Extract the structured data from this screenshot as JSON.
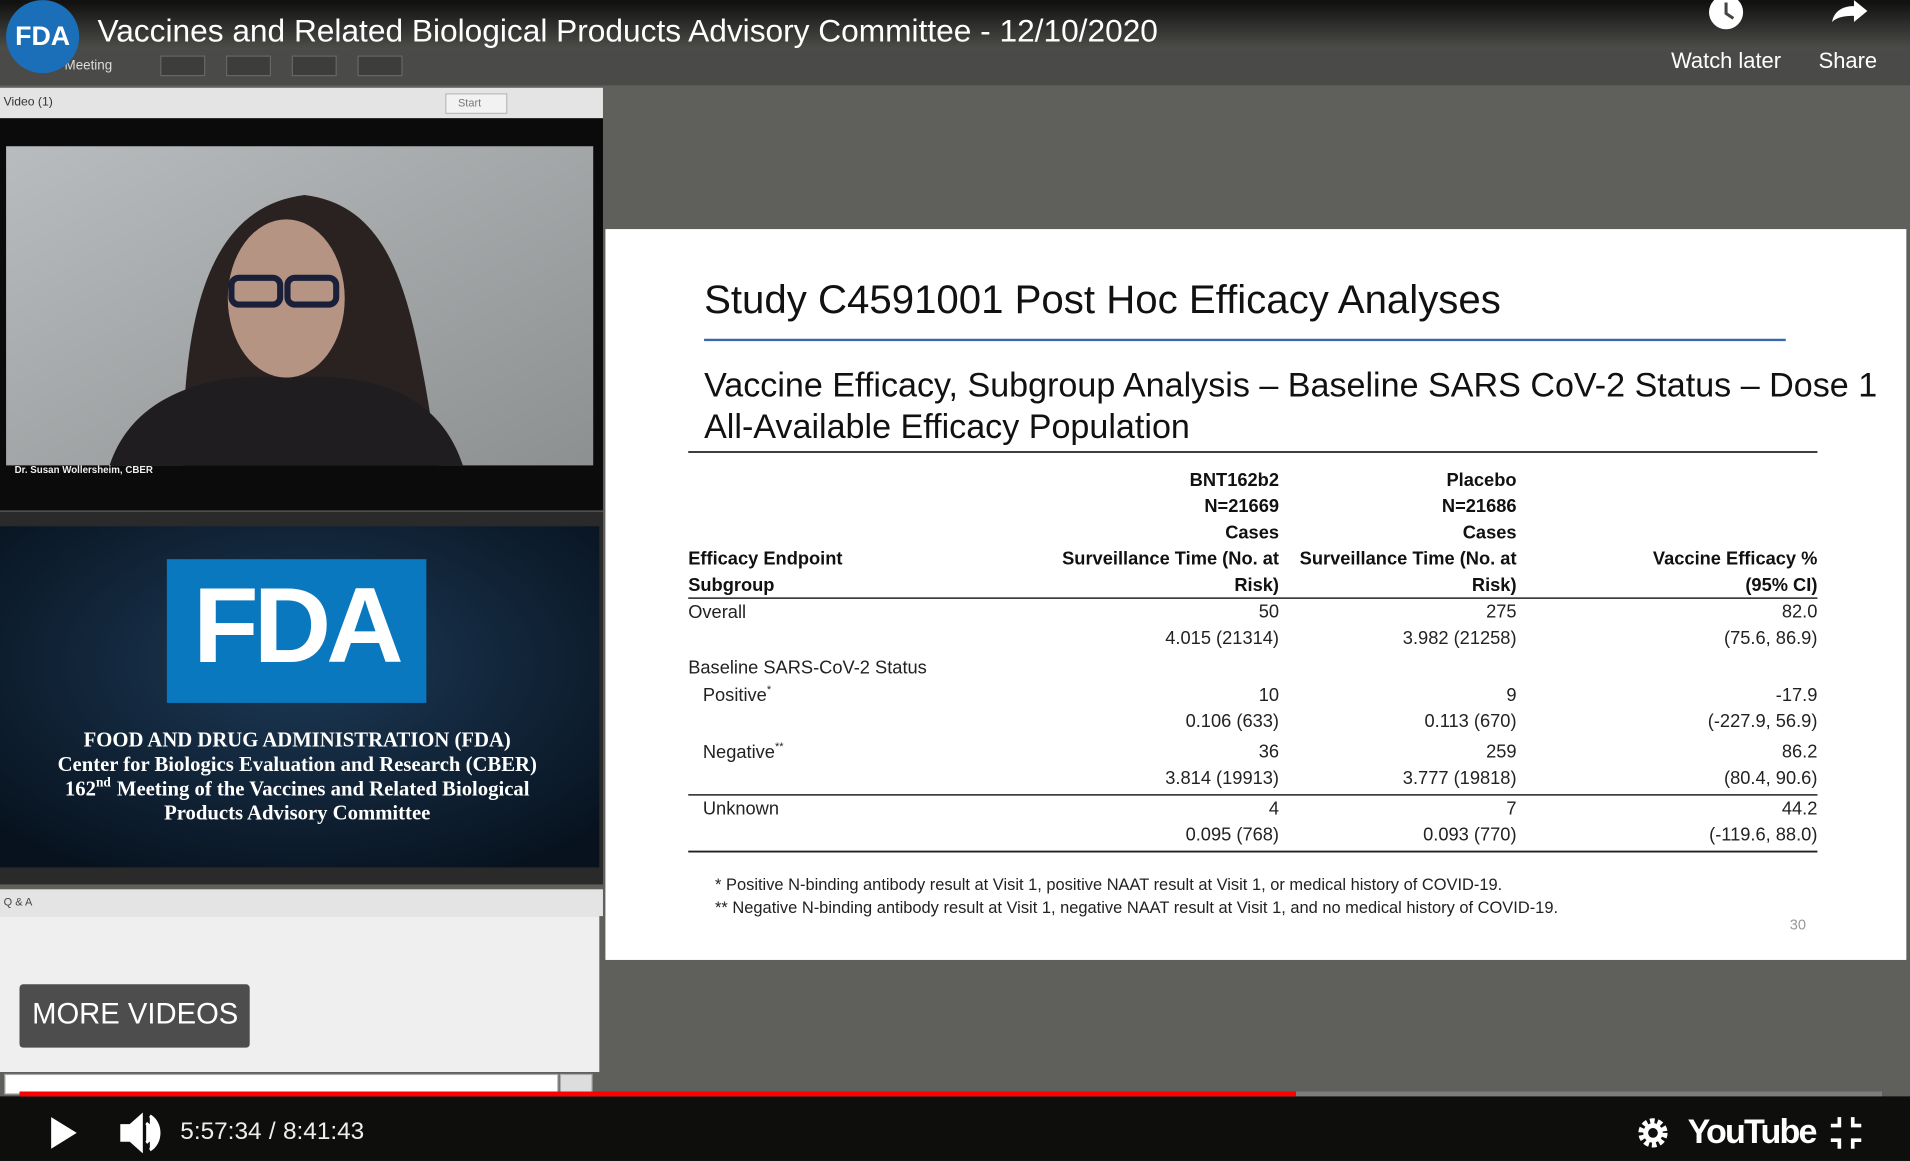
{
  "header": {
    "channel": "FDA",
    "title": "Vaccines and Related Biological Products Advisory Committee - 12/10/2020",
    "watch_later": "Watch later",
    "share": "Share"
  },
  "meeting": {
    "toolbar": "Meeting",
    "video_pod": "Video  (1)",
    "start": "Start",
    "speaker": "Dr. Susan Wollersheim, CBER",
    "logo": "FDA",
    "banner": {
      "line1": "FOOD AND DRUG ADMINISTRATION (FDA)",
      "line2": "Center for Biologics Evaluation and Research (CBER)",
      "line3": {
        "number": "162",
        "sup": "nd",
        "rest": "Meeting of the Vaccines and Related Biological"
      },
      "line4": "Products Advisory Committee"
    },
    "qa_pod": "Q & A"
  },
  "more_videos": "MORE VIDEOS",
  "slide": {
    "title": "Study C4591001 Post Hoc Efficacy Analyses",
    "subtitle_lines": [
      "Vaccine Efficacy, Subgroup Analysis – Baseline SARS CoV-2 Status – Dose 1",
      "All-Available Efficacy Population"
    ],
    "table": {
      "headers": [
        [
          "Efficacy Endpoint",
          "Subgroup"
        ],
        [
          "BNT162b2",
          "N=21669",
          "Cases",
          "Surveillance Time (No. at",
          "Risk)"
        ],
        [
          "Placebo",
          "N=21686",
          "Cases",
          "Surveillance Time (No. at",
          "Risk)"
        ],
        [
          "Vaccine Efficacy %",
          "(95% CI)"
        ]
      ],
      "rows": [
        {
          "label": "Overall",
          "bnt_cases": "50",
          "bnt_time": "4.015 (21314)",
          "pbo_cases": "275",
          "pbo_time": "3.982 (21258)",
          "ve": "82.0",
          "ci": "(75.6, 86.9)"
        }
      ],
      "group": {
        "label": "Baseline SARS-CoV-2 Status",
        "rows": [
          {
            "label": "Positive",
            "note": "*",
            "bnt_cases": "10",
            "bnt_time": "0.106 (633)",
            "pbo_cases": "9",
            "pbo_time": "0.113 (670)",
            "ve": "-17.9",
            "ci": "(-227.9, 56.9)"
          },
          {
            "label": "Negative",
            "note": "**",
            "bnt_cases": "36",
            "bnt_time": "3.814 (19913)",
            "pbo_cases": "259",
            "pbo_time": "3.777 (19818)",
            "ve": "86.2",
            "ci": "(80.4, 90.6)"
          },
          {
            "label": "Unknown",
            "bnt_cases": "4",
            "bnt_time": "0.095 (768)",
            "pbo_cases": "7",
            "pbo_time": "0.093 (770)",
            "ve": "44.2",
            "ci": "(-119.6, 88.0)"
          }
        ]
      }
    },
    "footnotes": [
      "* Positive N-binding antibody result at Visit 1, positive NAAT result at Visit 1, or medical history of COVID-19.",
      "** Negative N-binding antibody result at Visit 1, negative NAAT result at Visit 1, and no medical history of COVID-19."
    ],
    "page_number": "30"
  },
  "player": {
    "elapsed": "5:57:34",
    "separator": "/",
    "duration": "8:41:43",
    "logo": "YouTube"
  }
}
